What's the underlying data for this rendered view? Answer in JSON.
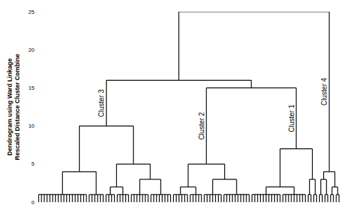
{
  "chart_data": {
    "type": "dendrogram",
    "ylabel": [
      "Dendrogram using Ward Linkage",
      "Rescaled Distance Cluster Combine"
    ],
    "ylim": [
      0,
      25
    ],
    "yticks": [
      0,
      5,
      10,
      15,
      20,
      25
    ],
    "tick_labels": "y",
    "grid": false,
    "color": "#000000",
    "tree": {
      "height": 25,
      "children": [
        {
          "height": 16,
          "children": [
            {
              "height": 10,
              "label": "Cluster 3",
              "children": [
                {
                  "height": 4,
                  "children": [
                    {
                      "height": 1,
                      "leaves": 18
                    },
                    {
                      "height": 1,
                      "leaves": 6
                    }
                  ]
                },
                {
                  "height": 5,
                  "children": [
                    {
                      "height": 2,
                      "children": [
                        {
                          "height": 1,
                          "leaves": 4
                        },
                        {
                          "height": 1,
                          "leaves": 5
                        }
                      ]
                    },
                    {
                      "height": 3,
                      "children": [
                        {
                          "height": 1,
                          "leaves": 7
                        },
                        {
                          "height": 1,
                          "leaves": 8
                        }
                      ]
                    }
                  ]
                }
              ]
            },
            {
              "height": 15,
              "children": [
                {
                  "height": 5,
                  "label": "Cluster 2",
                  "children": [
                    {
                      "height": 2,
                      "children": [
                        {
                          "height": 1,
                          "leaves": 6
                        },
                        {
                          "height": 1,
                          "leaves": 5
                        }
                      ]
                    },
                    {
                      "height": 3,
                      "children": [
                        {
                          "height": 1,
                          "leaves": 7
                        },
                        {
                          "height": 1,
                          "leaves": 10
                        }
                      ]
                    }
                  ]
                },
                {
                  "height": 7,
                  "label": "Cluster 1",
                  "children": [
                    {
                      "height": 2,
                      "children": [
                        {
                          "height": 1,
                          "leaves": 11
                        },
                        {
                          "height": 1,
                          "leaves": 9
                        }
                      ]
                    },
                    {
                      "height": 3,
                      "children": [
                        {
                          "height": 1,
                          "leaves": 2
                        },
                        {
                          "height": 1,
                          "leaves": 2
                        }
                      ]
                    }
                  ]
                }
              ]
            }
          ]
        },
        {
          "height": 4,
          "label": "Cluster 4",
          "children": [
            {
              "height": 3,
              "children": [
                {
                  "height": 1,
                  "leaves": 2
                },
                {
                  "height": 1,
                  "leaves": 2
                }
              ]
            },
            {
              "height": 2,
              "children": [
                {
                  "height": 1,
                  "leaves": 2
                },
                {
                  "height": 1,
                  "leaves": 2
                }
              ]
            }
          ]
        }
      ]
    }
  }
}
